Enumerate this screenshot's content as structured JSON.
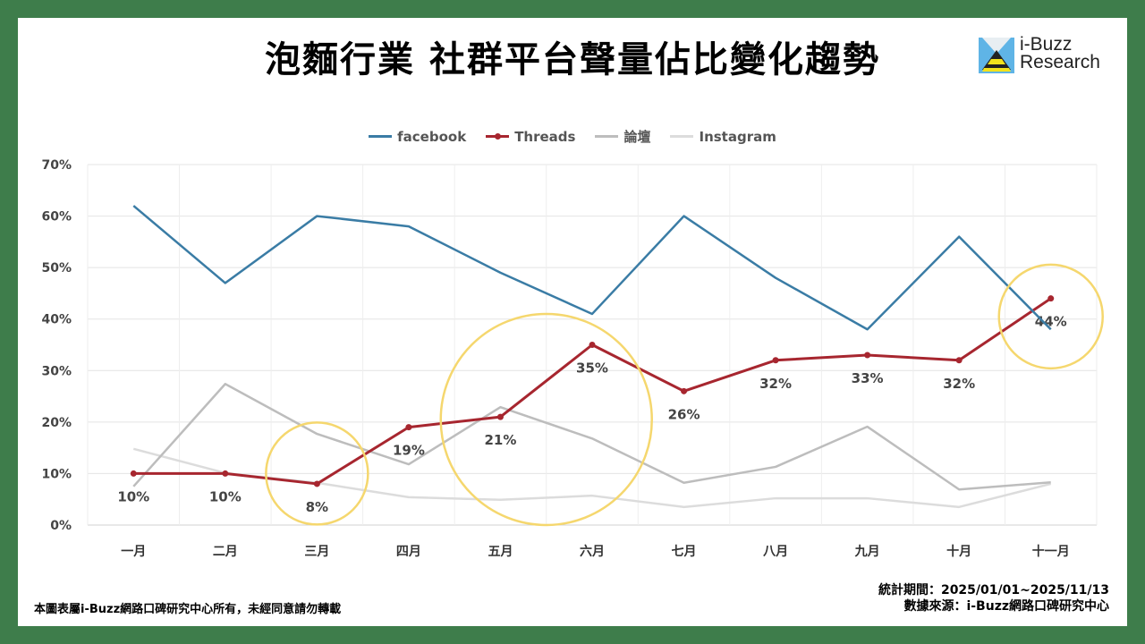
{
  "title": "泡麵行業 社群平台聲量佔比變化趨勢",
  "logo": {
    "line1": "i-Buzz",
    "line2": "Research"
  },
  "footer": {
    "copyright": "本圖表屬i-Buzz網路口碑研究中心所有，未經同意請勿轉載",
    "period": "統計期間：2025/01/01~2025/11/13",
    "source": "數據來源：i-Buzz網路口碑研究中心"
  },
  "chart_data": {
    "type": "line",
    "title": "泡麵行業 社群平台聲量佔比變化趨勢",
    "categories": [
      "一月",
      "二月",
      "三月",
      "四月",
      "五月",
      "六月",
      "七月",
      "八月",
      "九月",
      "十月",
      "十一月"
    ],
    "ylim": [
      0,
      70
    ],
    "yticks": [
      "0%",
      "10%",
      "20%",
      "30%",
      "40%",
      "50%",
      "60%",
      "70%"
    ],
    "grid": true,
    "legend_position": "top",
    "series": [
      {
        "name": "facebook",
        "color": "#3a7ca5",
        "values": [
          62,
          47,
          60,
          58,
          49,
          41,
          60,
          48,
          38,
          56,
          38
        ]
      },
      {
        "name": "Threads",
        "color": "#a7262f",
        "markers": true,
        "values": [
          10,
          10,
          8,
          19,
          21,
          35,
          26,
          32,
          33,
          32,
          44
        ],
        "labels": [
          "10%",
          "10%",
          "8%",
          "19%",
          "21%",
          "35%",
          "26%",
          "32%",
          "33%",
          "32%",
          "44%"
        ]
      },
      {
        "name": "論壇",
        "color": "#bdbdbd",
        "values": [
          7.5,
          27.4,
          17.7,
          11.8,
          22.9,
          16.8,
          8.2,
          11.3,
          19.1,
          6.9,
          8.3
        ]
      },
      {
        "name": "Instagram",
        "color": "#dcdcdc",
        "values": [
          14.8,
          10.1,
          8.2,
          5.4,
          4.9,
          5.7,
          3.5,
          5.2,
          5.2,
          3.5,
          8.0
        ]
      }
    ],
    "highlight_color": "#f5d76e"
  }
}
